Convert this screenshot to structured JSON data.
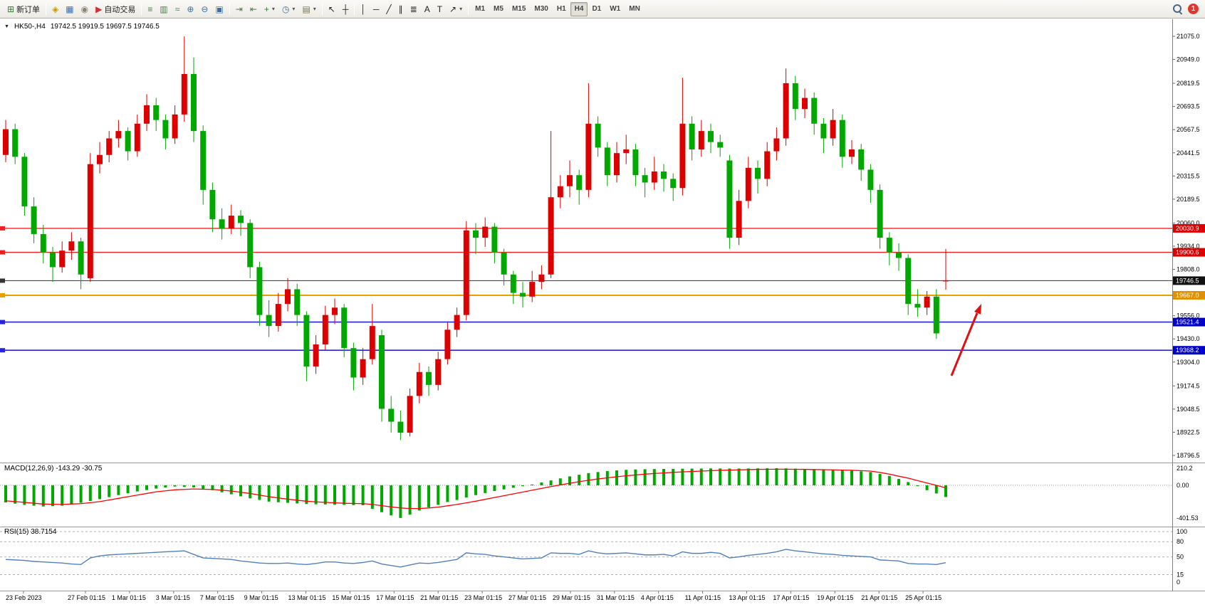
{
  "toolbar": {
    "items": [
      {
        "type": "button",
        "name": "new-order-button",
        "glyph": "⊞",
        "glyph_color": "#2e7d32",
        "label": "新订单"
      },
      {
        "type": "divider"
      },
      {
        "type": "button",
        "name": "market-watch-button",
        "glyph": "◈",
        "glyph_color": "#c99700"
      },
      {
        "type": "button",
        "name": "data-window-button",
        "glyph": "▦",
        "glyph_color": "#3f6fb5"
      },
      {
        "type": "button",
        "name": "navigator-button",
        "glyph": "◉",
        "glyph_color": "#8a8376"
      },
      {
        "type": "button",
        "name": "auto-trading-button",
        "glyph": "▶",
        "glyph_color": "#d32f2f",
        "label": "自动交易"
      },
      {
        "type": "divider"
      },
      {
        "type": "button",
        "name": "bar-chart-mode-button",
        "glyph": "≡",
        "glyph_color": "#4a7d4a"
      },
      {
        "type": "button",
        "name": "candlestick-mode-button",
        "glyph": "▥",
        "glyph_color": "#4a7d4a"
      },
      {
        "type": "button",
        "name": "line-chart-mode-button",
        "glyph": "≈",
        "glyph_color": "#4a7d4a"
      },
      {
        "type": "button",
        "name": "zoom-in-button",
        "glyph": "⊕",
        "glyph_color": "#3a6ea5"
      },
      {
        "type": "button",
        "name": "zoom-out-button",
        "glyph": "⊖",
        "glyph_color": "#3a6ea5"
      },
      {
        "type": "button",
        "name": "tile-windows-button",
        "glyph": "▣",
        "glyph_color": "#3a6ea5"
      },
      {
        "type": "divider"
      },
      {
        "type": "button",
        "name": "auto-scroll-button",
        "glyph": "⇥",
        "glyph_color": "#4a7d4a"
      },
      {
        "type": "button",
        "name": "chart-shift-button",
        "glyph": "⇤",
        "glyph_color": "#4a7d4a"
      },
      {
        "type": "button",
        "name": "indicators-button",
        "glyph": "+",
        "glyph_color": "#2e7d32",
        "caret": true
      },
      {
        "type": "button",
        "name": "periods-button",
        "glyph": "◷",
        "glyph_color": "#3a6ea5",
        "caret": true
      },
      {
        "type": "button",
        "name": "templates-button",
        "glyph": "▤",
        "glyph_color": "#7c6f5a",
        "caret": true
      },
      {
        "type": "divider"
      },
      {
        "type": "button",
        "name": "cursor-button",
        "glyph": "↖",
        "glyph_color": "#222222"
      },
      {
        "type": "button",
        "name": "crosshair-button",
        "glyph": "┼",
        "glyph_color": "#222222"
      },
      {
        "type": "divider"
      },
      {
        "type": "button",
        "name": "vertical-line-button",
        "glyph": "│",
        "glyph_color": "#222222"
      },
      {
        "type": "button",
        "name": "horizontal-line-button",
        "glyph": "─",
        "glyph_color": "#222222"
      },
      {
        "type": "button",
        "name": "trendline-button",
        "glyph": "╱",
        "glyph_color": "#222222"
      },
      {
        "type": "button",
        "name": "channel-button",
        "glyph": "∥",
        "glyph_color": "#222222"
      },
      {
        "type": "button",
        "name": "fibonacci-button",
        "glyph": "≣",
        "glyph_color": "#222222"
      },
      {
        "type": "button",
        "name": "text-button",
        "glyph": "A",
        "glyph_color": "#222222"
      },
      {
        "type": "button",
        "name": "text-label-button",
        "glyph": "T",
        "glyph_color": "#222222"
      },
      {
        "type": "button",
        "name": "arrows-tool-button",
        "glyph": "↗",
        "glyph_color": "#222222",
        "caret": true
      },
      {
        "type": "divider"
      }
    ],
    "timeframes": [
      "M1",
      "M5",
      "M15",
      "M30",
      "H1",
      "H4",
      "D1",
      "W1",
      "MN"
    ],
    "active_timeframe": "H4",
    "notification_count": "1"
  },
  "chart": {
    "title_symbol": "HK50-,H4",
    "title_ohlc": "19742.5 19919.5 19697.5 19746.5",
    "collapse_marker": "▼"
  },
  "price_axis": {
    "labels": [
      "21075.0",
      "20949.0",
      "20819.5",
      "20693.5",
      "20567.5",
      "20441.5",
      "20315.5",
      "20189.5",
      "20060.0",
      "19934.0",
      "19808.0",
      "19556.0",
      "19430.0",
      "19304.0",
      "19174.5",
      "19048.5",
      "18922.5",
      "18796.5"
    ]
  },
  "hlines": [
    {
      "value": 20030.9,
      "label": "20030.9",
      "color": "#f02020",
      "tag": "#dd0000",
      "width": 1.4
    },
    {
      "value": 19900.6,
      "label": "19900.6",
      "color": "#f02020",
      "tag": "#dd0000",
      "width": 1.4
    },
    {
      "value": 19746.5,
      "label": "19746.5",
      "color": "#333333",
      "tag": "#111111",
      "width": 1
    },
    {
      "value": 19667.0,
      "label": "19667.0",
      "color": "#e8a000",
      "tag": "#e09000",
      "width": 2
    },
    {
      "value": 19521.4,
      "label": "19521.4",
      "color": "#2525dd",
      "tag": "#0000cc",
      "width": 1.6
    },
    {
      "value": 19368.2,
      "label": "19368.2",
      "color": "#2525dd",
      "tag": "#0000cc",
      "width": 1.6
    }
  ],
  "macd": {
    "label": "MACD(12,26,9) -143.29 -30.75",
    "axis_labels": [
      "210.2",
      "0.00",
      "-401.53"
    ],
    "histogram_color": "#00a800",
    "signal_color": "#ff0000"
  },
  "rsi": {
    "label": "RSI(15) 38.7154",
    "axis_labels": [
      "100",
      "80",
      "50",
      "15",
      "0"
    ],
    "levels": [
      100,
      80,
      50,
      15
    ],
    "line_color": "#4f81bd"
  },
  "time_axis": {
    "labels": [
      "23 Feb 2023",
      "27 Feb 01:15",
      "1 Mar 01:15",
      "3 Mar 01:15",
      "7 Mar 01:15",
      "9 Mar 01:15",
      "13 Mar 01:15",
      "15 Mar 01:15",
      "17 Mar 01:15",
      "21 Mar 01:15",
      "23 Mar 01:15",
      "27 Mar 01:15",
      "29 Mar 01:15",
      "31 Mar 01:15",
      "4 Apr 01:15",
      "11 Apr 01:15",
      "13 Apr 01:15",
      "17 Apr 01:15",
      "19 Apr 01:15",
      "21 Apr 01:15",
      "25 Apr 01:15"
    ]
  },
  "annotations": {
    "arrow_color": "#e01010"
  },
  "chart_data": {
    "type": "candlestick",
    "symbol": "HK50-",
    "period": "H4",
    "up_color": "#dd0000",
    "down_color": "#00a800",
    "price_range": [
      18796.5,
      21075.0
    ],
    "candles_ohlc": [
      [
        20430,
        20620,
        20390,
        20570
      ],
      [
        20570,
        20600,
        20380,
        20420
      ],
      [
        20420,
        20440,
        20100,
        20150
      ],
      [
        20150,
        20200,
        19950,
        20000
      ],
      [
        20000,
        20050,
        19840,
        19900
      ],
      [
        19900,
        19930,
        19740,
        19820
      ],
      [
        19820,
        19960,
        19790,
        19910
      ],
      [
        19910,
        20010,
        19860,
        19960
      ],
      [
        19960,
        19980,
        19700,
        19780
      ],
      [
        19760,
        20440,
        19740,
        20380
      ],
      [
        20380,
        20500,
        20330,
        20430
      ],
      [
        20430,
        20560,
        20390,
        20520
      ],
      [
        20520,
        20620,
        20470,
        20560
      ],
      [
        20560,
        20580,
        20400,
        20450
      ],
      [
        20450,
        20650,
        20420,
        20600
      ],
      [
        20600,
        20760,
        20560,
        20700
      ],
      [
        20700,
        20740,
        20560,
        20620
      ],
      [
        20620,
        20650,
        20460,
        20520
      ],
      [
        20520,
        20700,
        20490,
        20650
      ],
      [
        20650,
        21075,
        20610,
        20870
      ],
      [
        20870,
        20960,
        20500,
        20560
      ],
      [
        20560,
        20590,
        20160,
        20240
      ],
      [
        20240,
        20280,
        20010,
        20080
      ],
      [
        20080,
        20140,
        19970,
        20030
      ],
      [
        20030,
        20160,
        20000,
        20100
      ],
      [
        20100,
        20130,
        19990,
        20060
      ],
      [
        20060,
        20080,
        19760,
        19820
      ],
      [
        19820,
        19850,
        19500,
        19560
      ],
      [
        19560,
        19640,
        19440,
        19500
      ],
      [
        19500,
        19680,
        19470,
        19620
      ],
      [
        19620,
        19760,
        19580,
        19700
      ],
      [
        19700,
        19730,
        19500,
        19560
      ],
      [
        19560,
        19580,
        19200,
        19280
      ],
      [
        19280,
        19450,
        19240,
        19400
      ],
      [
        19400,
        19610,
        19370,
        19560
      ],
      [
        19560,
        19650,
        19510,
        19600
      ],
      [
        19600,
        19620,
        19330,
        19380
      ],
      [
        19380,
        19410,
        19150,
        19220
      ],
      [
        19220,
        19380,
        19180,
        19320
      ],
      [
        19320,
        19620,
        19290,
        19500
      ],
      [
        19450,
        19480,
        18980,
        19050
      ],
      [
        19050,
        19120,
        18920,
        18980
      ],
      [
        18980,
        19040,
        18880,
        18920
      ],
      [
        18920,
        19160,
        18900,
        19120
      ],
      [
        19120,
        19300,
        19080,
        19250
      ],
      [
        19250,
        19280,
        19120,
        19180
      ],
      [
        19180,
        19360,
        19150,
        19320
      ],
      [
        19320,
        19520,
        19290,
        19480
      ],
      [
        19480,
        19600,
        19440,
        19560
      ],
      [
        19560,
        20070,
        19530,
        20020
      ],
      [
        20020,
        20060,
        19890,
        19980
      ],
      [
        19980,
        20090,
        19930,
        20040
      ],
      [
        20040,
        20060,
        19840,
        19900
      ],
      [
        19900,
        19920,
        19720,
        19780
      ],
      [
        19780,
        19800,
        19620,
        19680
      ],
      [
        19680,
        19740,
        19600,
        19660
      ],
      [
        19660,
        19800,
        19630,
        19740
      ],
      [
        19740,
        19830,
        19700,
        19780
      ],
      [
        19780,
        20560,
        19760,
        20200
      ],
      [
        20200,
        20320,
        20140,
        20260
      ],
      [
        20260,
        20400,
        20200,
        20320
      ],
      [
        20320,
        20350,
        20160,
        20240
      ],
      [
        20240,
        20820,
        20200,
        20600
      ],
      [
        20600,
        20640,
        20420,
        20470
      ],
      [
        20470,
        20500,
        20260,
        20320
      ],
      [
        20320,
        20500,
        20280,
        20440
      ],
      [
        20440,
        20540,
        20380,
        20460
      ],
      [
        20460,
        20490,
        20260,
        20320
      ],
      [
        20320,
        20360,
        20200,
        20280
      ],
      [
        20280,
        20420,
        20240,
        20340
      ],
      [
        20340,
        20380,
        20230,
        20300
      ],
      [
        20300,
        20330,
        20180,
        20250
      ],
      [
        20250,
        20850,
        20210,
        20600
      ],
      [
        20600,
        20640,
        20400,
        20460
      ],
      [
        20460,
        20620,
        20420,
        20560
      ],
      [
        20560,
        20600,
        20440,
        20500
      ],
      [
        20500,
        20540,
        20420,
        20470
      ],
      [
        20400,
        20430,
        19920,
        19980
      ],
      [
        19980,
        20240,
        19940,
        20180
      ],
      [
        20180,
        20420,
        20140,
        20360
      ],
      [
        20360,
        20400,
        20220,
        20300
      ],
      [
        20300,
        20500,
        20260,
        20450
      ],
      [
        20450,
        20580,
        20400,
        20520
      ],
      [
        20520,
        20900,
        20480,
        20820
      ],
      [
        20820,
        20860,
        20620,
        20680
      ],
      [
        20680,
        20790,
        20630,
        20740
      ],
      [
        20740,
        20770,
        20540,
        20600
      ],
      [
        20600,
        20630,
        20440,
        20520
      ],
      [
        20520,
        20680,
        20480,
        20620
      ],
      [
        20620,
        20650,
        20360,
        20420
      ],
      [
        20420,
        20510,
        20380,
        20460
      ],
      [
        20460,
        20490,
        20290,
        20350
      ],
      [
        20350,
        20380,
        20170,
        20240
      ],
      [
        20240,
        20270,
        19920,
        19980
      ],
      [
        19980,
        20010,
        19830,
        19900
      ],
      [
        19900,
        19950,
        19800,
        19870
      ],
      [
        19870,
        19890,
        19560,
        19620
      ],
      [
        19620,
        19700,
        19550,
        19600
      ],
      [
        19600,
        19690,
        19560,
        19660
      ],
      [
        19660,
        19700,
        19430,
        19460
      ],
      [
        19742.5,
        19919.5,
        19697.5,
        19746.5
      ]
    ],
    "macd_histogram": [
      -210,
      -225,
      -240,
      -250,
      -260,
      -255,
      -250,
      -233,
      -215,
      -193,
      -170,
      -145,
      -120,
      -98,
      -75,
      -58,
      -40,
      -28,
      -15,
      -20,
      -25,
      -43,
      -60,
      -85,
      -110,
      -135,
      -160,
      -180,
      -200,
      -208,
      -215,
      -223,
      -230,
      -233,
      -235,
      -238,
      -240,
      -243,
      -245,
      -290,
      -330,
      -370,
      -401.53,
      -360,
      -310,
      -270,
      -240,
      -205,
      -180,
      -150,
      -120,
      -95,
      -70,
      -50,
      -30,
      -10,
      10,
      35,
      60,
      85,
      110,
      130,
      150,
      163,
      175,
      183,
      190,
      195,
      198,
      200,
      201,
      202,
      204,
      205,
      206,
      207,
      207,
      206,
      206,
      207,
      208,
      209,
      210,
      208,
      205,
      200,
      196,
      192,
      188,
      184,
      180,
      172,
      163,
      140,
      115,
      78,
      40,
      -10,
      -60,
      -100,
      -143.29
    ],
    "macd_signal": [
      -190,
      -200,
      -210,
      -220,
      -230,
      -233,
      -235,
      -230,
      -225,
      -213,
      -200,
      -180,
      -160,
      -140,
      -120,
      -100,
      -80,
      -68,
      -55,
      -50,
      -45,
      -48,
      -50,
      -60,
      -70,
      -85,
      -100,
      -120,
      -140,
      -155,
      -170,
      -183,
      -195,
      -203,
      -210,
      -215,
      -220,
      -223,
      -225,
      -235,
      -250,
      -265,
      -278,
      -285,
      -285,
      -278,
      -268,
      -252,
      -235,
      -215,
      -195,
      -172,
      -150,
      -128,
      -105,
      -83,
      -60,
      -38,
      -15,
      5,
      25,
      45,
      62,
      78,
      92,
      105,
      117,
      127,
      137,
      145,
      152,
      159,
      165,
      170,
      175,
      180,
      184,
      187,
      190,
      193,
      196,
      197,
      198,
      198,
      197,
      196,
      194,
      192,
      190,
      187,
      184,
      180,
      175,
      158,
      138,
      112,
      88,
      58,
      28,
      0,
      -30.75
    ],
    "rsi": [
      45,
      44,
      43,
      41,
      40,
      39,
      38,
      36,
      35,
      48,
      52,
      54,
      55,
      56,
      57,
      58,
      59,
      60,
      61,
      62,
      55,
      48,
      47,
      46,
      45,
      42,
      40,
      38,
      37,
      37,
      38,
      36,
      35,
      37,
      40,
      40,
      38,
      37,
      39,
      42,
      36,
      33,
      30,
      34,
      38,
      37,
      39,
      42,
      45,
      58,
      56,
      55,
      52,
      50,
      48,
      46,
      47,
      48,
      58,
      57,
      57,
      55,
      62,
      58,
      56,
      57,
      58,
      56,
      54,
      54,
      55,
      52,
      60,
      57,
      57,
      59,
      57,
      48,
      50,
      53,
      55,
      57,
      60,
      65,
      62,
      60,
      58,
      56,
      55,
      53,
      52,
      51,
      50,
      44,
      43,
      42,
      37,
      36,
      36,
      35,
      38.7
    ]
  }
}
